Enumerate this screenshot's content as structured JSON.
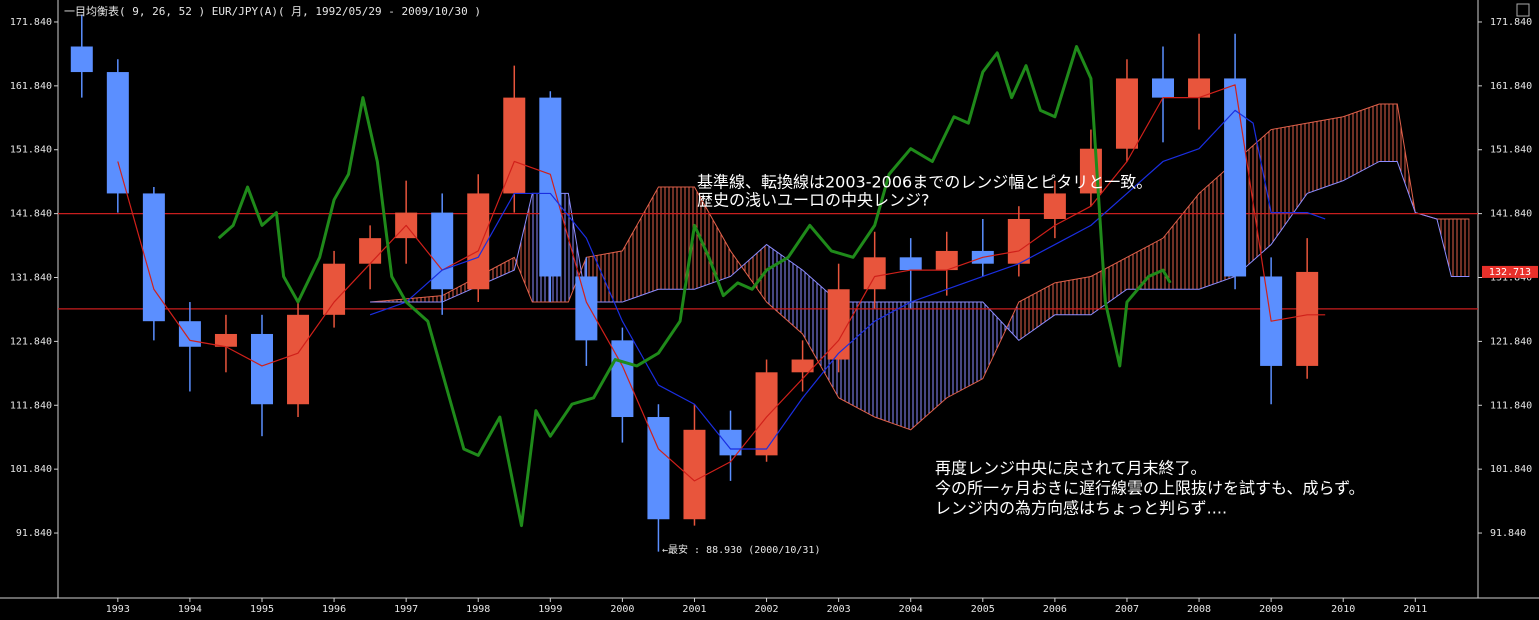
{
  "chart_data": {
    "type": "candlestick",
    "title": "一目均衡表( 9, 26, 52 )   EUR/JPY(A)( 月, 1992/05/29 - 2009/10/30 )",
    "xlim": [
      1992.17,
      2011.87
    ],
    "ylim": [
      81.67,
      175.28
    ],
    "xticks": [
      1993,
      1994,
      1995,
      1996,
      1997,
      1998,
      1999,
      2000,
      2001,
      2002,
      2003,
      2004,
      2005,
      2006,
      2007,
      2008,
      2009,
      2010,
      2011
    ],
    "yticks": [
      {
        "value": 91.84,
        "label": "91.840"
      },
      {
        "value": 101.84,
        "label": "101.840"
      },
      {
        "value": 111.84,
        "label": "111.840"
      },
      {
        "value": 121.84,
        "label": "121.840"
      },
      {
        "value": 131.84,
        "label": "131.840"
      },
      {
        "value": 141.84,
        "label": "141.840"
      },
      {
        "value": 151.84,
        "label": "151.840"
      },
      {
        "value": 161.84,
        "label": "161.840"
      },
      {
        "value": 171.84,
        "label": "171.840"
      }
    ],
    "candles": {
      "up_color": "#e8553c",
      "down_color": "#5b8fff",
      "x": [
        1992.5,
        1993.0,
        1993.5,
        1994.0,
        1994.5,
        1995.0,
        1995.5,
        1996.0,
        1996.5,
        1997.0,
        1997.5,
        1998.0,
        1998.5,
        1999.0,
        1999.5,
        2000.0,
        2000.5,
        2001.0,
        2001.5,
        2002.0,
        2002.5,
        2003.0,
        2003.5,
        2004.0,
        2004.5,
        2005.0,
        2005.5,
        2006.0,
        2006.5,
        2007.0,
        2007.5,
        2008.0,
        2008.5,
        2009.0,
        2009.5
      ],
      "open": [
        168,
        164,
        145,
        125,
        121,
        123,
        112,
        126,
        134,
        138,
        142,
        130,
        145,
        160,
        132,
        122,
        110,
        94,
        108,
        104,
        117,
        119,
        130,
        135,
        133,
        136,
        134,
        141,
        145,
        152,
        163,
        160,
        163,
        132,
        118
      ],
      "high": [
        173,
        166,
        146,
        128,
        126,
        126,
        128,
        136,
        140,
        147,
        145,
        148,
        165,
        161,
        135,
        124,
        112,
        112,
        111,
        119,
        122,
        134,
        139,
        138,
        139,
        141,
        143,
        147,
        155,
        166,
        168,
        170,
        170,
        135,
        138
      ],
      "low": [
        160,
        142,
        122,
        114,
        117,
        107,
        110,
        124,
        130,
        134,
        126,
        128,
        142,
        128,
        118,
        106,
        88.93,
        93,
        100,
        103,
        114,
        117,
        127,
        127,
        129,
        132,
        132,
        138,
        143,
        150,
        153,
        155,
        130,
        112,
        116
      ],
      "close": [
        164,
        145,
        125,
        121,
        123,
        112,
        126,
        134,
        138,
        142,
        130,
        145,
        160,
        132,
        122,
        110,
        94,
        108,
        104,
        117,
        119,
        130,
        135,
        133,
        136,
        134,
        141,
        145,
        152,
        163,
        160,
        163,
        132,
        118,
        132.713
      ]
    },
    "conversion_line": {
      "color": "#d0201a",
      "x": [
        1993.0,
        1993.5,
        1994.0,
        1994.5,
        1995.0,
        1995.5,
        1996.0,
        1996.5,
        1997.0,
        1997.5,
        1998.0,
        1998.5,
        1999.0,
        1999.5,
        2000.0,
        2000.5,
        2001.0,
        2001.5,
        2002.0,
        2002.5,
        2003.0,
        2003.5,
        2004.0,
        2004.5,
        2005.0,
        2005.5,
        2006.0,
        2006.5,
        2007.0,
        2007.5,
        2008.0,
        2008.5,
        2009.0,
        2009.5,
        2009.75
      ],
      "values": [
        150,
        130,
        122,
        121,
        118,
        120,
        128,
        134,
        140,
        133,
        136,
        150,
        148,
        128,
        118,
        105,
        100,
        103,
        110,
        116,
        122,
        132,
        133,
        133,
        135,
        136,
        140,
        143,
        150,
        160,
        160,
        162,
        125,
        126,
        126
      ]
    },
    "base_line": {
      "color": "#1a2ee0",
      "x": [
        1996.5,
        1997.0,
        1997.5,
        1998.0,
        1998.5,
        1999.0,
        1999.5,
        2000.0,
        2000.5,
        2001.0,
        2001.5,
        2002.0,
        2002.5,
        2003.0,
        2003.5,
        2004.0,
        2004.5,
        2005.0,
        2005.5,
        2006.0,
        2006.5,
        2007.0,
        2007.5,
        2008.0,
        2008.5,
        2008.75,
        2009.0,
        2009.5,
        2009.75
      ],
      "values": [
        126,
        128,
        133,
        135,
        145,
        145,
        138,
        125,
        115,
        112,
        105,
        105,
        113,
        120,
        125,
        128,
        130,
        132,
        134,
        137,
        140,
        145,
        150,
        152,
        158,
        156,
        142,
        142,
        141
      ]
    },
    "lagging_line": {
      "color": "#1f8a1a",
      "x": [
        1994.4,
        1994.6,
        1994.8,
        1995.0,
        1995.2,
        1995.3,
        1995.5,
        1995.8,
        1996.0,
        1996.2,
        1996.4,
        1996.6,
        1996.8,
        1997.0,
        1997.3,
        1997.6,
        1997.8,
        1998.0,
        1998.3,
        1998.6,
        1998.8,
        1999.0,
        1999.3,
        1999.6,
        1999.9,
        2000.2,
        2000.5,
        2000.8,
        2001.0,
        2001.2,
        2001.4,
        2001.6,
        2001.8,
        2002.0,
        2002.3,
        2002.6,
        2002.9,
        2003.2,
        2003.5,
        2003.7,
        2004.0,
        2004.3,
        2004.6,
        2004.8,
        2005.0,
        2005.2,
        2005.4,
        2005.6,
        2005.8,
        2006.0,
        2006.3,
        2006.5,
        2006.7,
        2006.9,
        2007.0,
        2007.3,
        2007.5,
        2007.6
      ],
      "values": [
        138,
        140,
        146,
        140,
        142,
        132,
        128,
        135,
        144,
        148,
        160,
        150,
        132,
        128,
        125,
        113,
        105,
        104,
        110,
        93,
        111,
        107,
        112,
        113,
        119,
        118,
        120,
        125,
        140,
        135,
        129,
        131,
        130,
        133,
        135,
        140,
        136,
        135,
        140,
        148,
        152,
        150,
        157,
        156,
        164,
        167,
        160,
        165,
        158,
        157,
        168,
        163,
        128,
        118,
        128,
        132,
        133,
        131
      ]
    },
    "cloud": {
      "up_color": "#e0604a",
      "down_color": "#8c8cff",
      "x": [
        1996.5,
        1997.5,
        1998.5,
        1998.75,
        1999.25,
        1999.5,
        2000.0,
        2000.5,
        2001.0,
        2001.5,
        2002.0,
        2002.5,
        2003.0,
        2003.5,
        2004.0,
        2004.5,
        2005.0,
        2005.5,
        2006.0,
        2006.5,
        2007.0,
        2007.5,
        2008.0,
        2008.5,
        2009.0,
        2009.5,
        2010.0,
        2010.5,
        2010.75,
        2011.0,
        2011.3,
        2011.5,
        2011.75
      ],
      "span_a": [
        128,
        129,
        135,
        128,
        128,
        135,
        136,
        146,
        146,
        136,
        128,
        123,
        113,
        110,
        108,
        113,
        116,
        128,
        131,
        132,
        135,
        138,
        145,
        150,
        155,
        156,
        157,
        159,
        159,
        142,
        141,
        141,
        141
      ],
      "span_b": [
        128,
        128,
        133,
        145,
        145,
        128,
        128,
        130,
        130,
        132,
        137,
        133,
        128,
        128,
        128,
        128,
        128,
        122,
        126,
        126,
        130,
        130,
        130,
        132,
        137,
        145,
        147,
        150,
        150,
        142,
        141,
        132,
        132
      ]
    },
    "reference_lines": {
      "color": "#c81e1e",
      "values": [
        141.84,
        126.93
      ]
    },
    "last_price_label": {
      "value": 132.713,
      "label": "132.713",
      "color": "#e8302a"
    },
    "low_annotation": "←最安 : 88.930 (2000/10/31)",
    "annotations": [
      "基準線、転換線は2003-2006までのレンジ幅とピタリと一致。",
      "歴史の浅いユーロの中央レンジ?",
      "再度レンジ中央に戻されて月末終了。",
      "今の所一ヶ月おきに遅行線雲の上限抜けを試すも、成らず。",
      "レンジ内の為方向感はちょっと判らず...."
    ]
  }
}
